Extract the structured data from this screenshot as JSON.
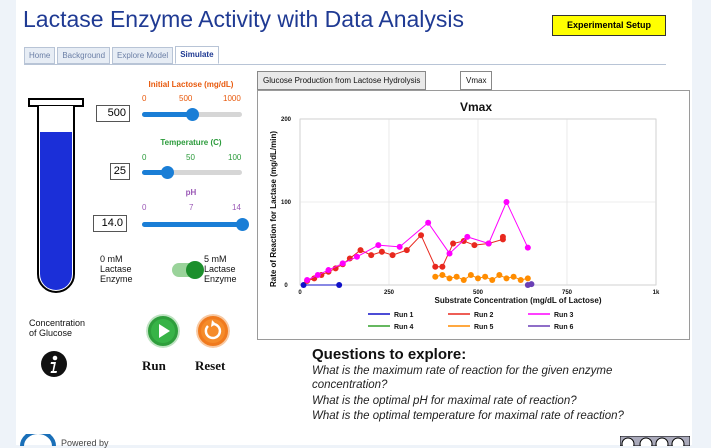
{
  "app": {
    "title": "Lactase Enzyme Activity with Data Analysis",
    "setup_button": "Experimental Setup"
  },
  "nav_tabs": [
    {
      "label": "Home"
    },
    {
      "label": "Background"
    },
    {
      "label": "Explore Model"
    },
    {
      "label": "Simulate",
      "active": true
    }
  ],
  "controls": {
    "lactose": {
      "title": "Initial Lactose (mg/dL)",
      "min": "0",
      "mid": "500",
      "max": "1000",
      "value": "500",
      "fraction": 0.5,
      "color": "#e8590c"
    },
    "temperature": {
      "title": "Temperature (C)",
      "min": "0",
      "mid": "50",
      "max": "100",
      "value": "25",
      "fraction": 0.25,
      "color": "#2b9b3b"
    },
    "ph": {
      "title": "pH",
      "min": "0",
      "mid": "7",
      "max": "14",
      "value": "14.0",
      "fraction": 1.0,
      "color": "#9b59b6"
    },
    "enzyme": {
      "left": [
        "0 mM",
        "Lactase",
        "Enzyme"
      ],
      "right": [
        "5 mM",
        "Lactase",
        "Enzyme"
      ],
      "on": true
    }
  },
  "glucose_label": [
    "Concentration",
    "of Glucose"
  ],
  "buttons": {
    "run": "Run",
    "reset": "Reset"
  },
  "chart_tabs": [
    {
      "label": "Glucose Production from Lactose Hydrolysis"
    },
    {
      "label": "Vmax",
      "active": true
    }
  ],
  "chart_data": {
    "type": "scatter",
    "title": "Vmax",
    "xlabel": "Substrate Concentration (mg/dL of Lactose)",
    "ylabel": "Rate of Reaction for Lactase (mg/dL/min)",
    "xlim": [
      0,
      1000
    ],
    "ylim": [
      0,
      200
    ],
    "xticks": [
      "0",
      "250",
      "500",
      "750",
      "1k"
    ],
    "xtick_values": [
      0,
      250,
      500,
      750,
      1000
    ],
    "yticks": [
      "0",
      "100",
      "200"
    ],
    "ytick_values": [
      0,
      100,
      200
    ],
    "grid": true,
    "series": [
      {
        "name": "Run 1",
        "color": "#1010c8",
        "points": [
          [
            10,
            0
          ],
          [
            110,
            0
          ]
        ]
      },
      {
        "name": "Run 2",
        "color": "#e8281e",
        "points": [
          [
            20,
            5
          ],
          [
            40,
            8
          ],
          [
            60,
            12
          ],
          [
            80,
            16
          ],
          [
            100,
            20
          ],
          [
            120,
            25
          ],
          [
            140,
            32
          ],
          [
            170,
            42
          ],
          [
            200,
            36
          ],
          [
            230,
            40
          ],
          [
            260,
            36
          ],
          [
            300,
            42
          ],
          [
            340,
            60
          ],
          [
            380,
            22
          ],
          [
            400,
            22
          ],
          [
            430,
            50
          ],
          [
            460,
            53
          ],
          [
            490,
            48
          ],
          [
            530,
            50
          ],
          [
            570,
            55
          ],
          [
            570,
            58
          ]
        ]
      },
      {
        "name": "Run 3",
        "color": "#ff00ff",
        "points": [
          [
            20,
            6
          ],
          [
            50,
            12
          ],
          [
            80,
            18
          ],
          [
            120,
            26
          ],
          [
            160,
            34
          ],
          [
            220,
            48
          ],
          [
            280,
            46
          ],
          [
            360,
            75
          ],
          [
            420,
            38
          ],
          [
            470,
            58
          ],
          [
            530,
            50
          ],
          [
            580,
            100
          ],
          [
            640,
            45
          ]
        ]
      },
      {
        "name": "Run 4",
        "color": "#33a02c",
        "points": []
      },
      {
        "name": "Run 5",
        "color": "#ff8c00",
        "points": [
          [
            380,
            10
          ],
          [
            400,
            12
          ],
          [
            420,
            8
          ],
          [
            440,
            10
          ],
          [
            460,
            6
          ],
          [
            480,
            12
          ],
          [
            500,
            8
          ],
          [
            520,
            10
          ],
          [
            540,
            6
          ],
          [
            560,
            12
          ],
          [
            580,
            8
          ],
          [
            600,
            10
          ],
          [
            620,
            6
          ],
          [
            640,
            8
          ]
        ]
      },
      {
        "name": "Run 6",
        "color": "#6a3fb5",
        "points": [
          [
            640,
            0
          ],
          [
            650,
            1
          ]
        ]
      }
    ]
  },
  "questions": {
    "title": "Questions to explore:",
    "items": [
      "What is the maximum rate of reaction for the given enzyme",
      "concentration?",
      "What is the optimal pH for maximal rate of reaction?",
      "What is the optimal temperature for maximal rate of reaction?"
    ]
  },
  "footer": {
    "powered_by": "Powered by"
  }
}
